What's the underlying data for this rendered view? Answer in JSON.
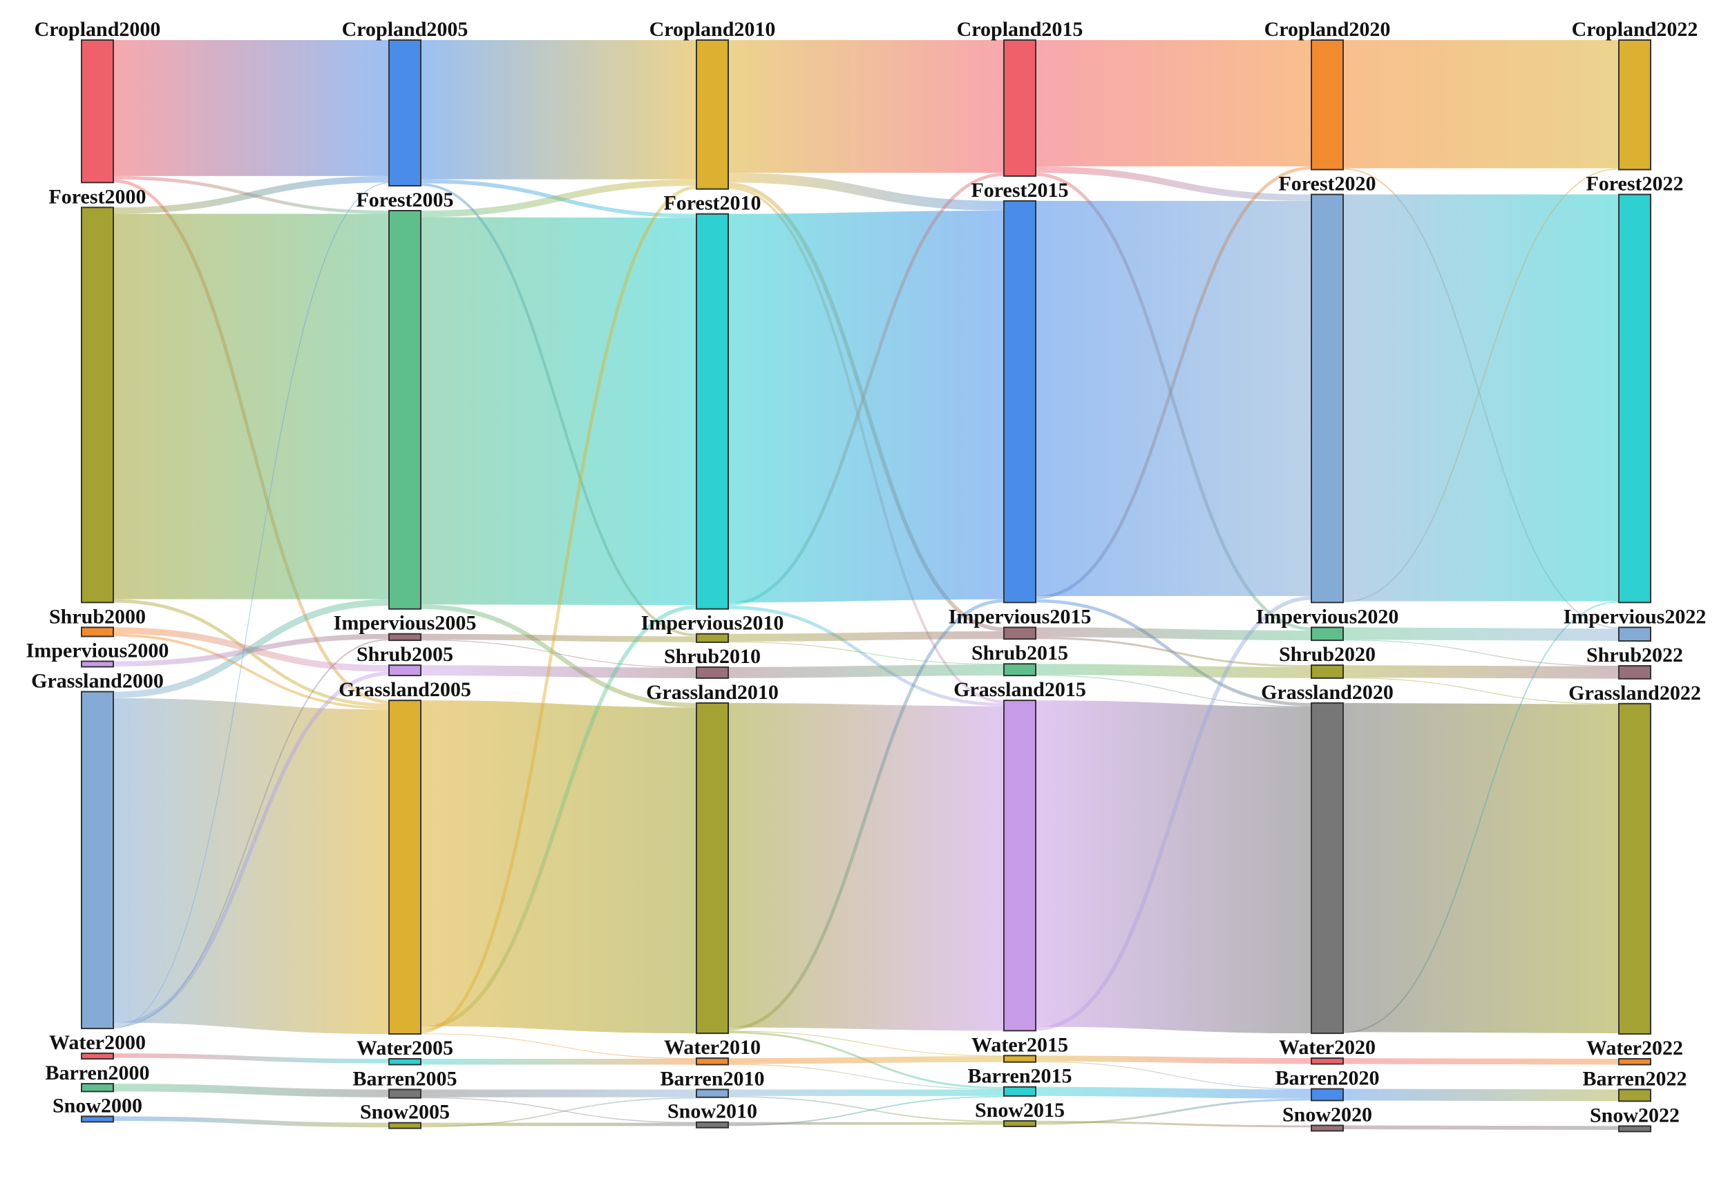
{
  "chart_data": {
    "type": "sankey",
    "title": "",
    "stages": [
      "2000",
      "2005",
      "2010",
      "2015",
      "2020",
      "2022"
    ],
    "categories": [
      "Cropland",
      "Forest",
      "Shrub",
      "Impervious",
      "Grassland",
      "Water",
      "Barren",
      "Snow"
    ],
    "nodes": [
      {
        "id": "Cropland2000",
        "label": "Cropland2000",
        "stage": 0,
        "value": 22.0,
        "color": "#f0606a"
      },
      {
        "id": "Forest2000",
        "label": "Forest2000",
        "stage": 0,
        "value": 61.0,
        "color": "#a3a233"
      },
      {
        "id": "Shrub2000",
        "label": "Shrub2000",
        "stage": 0,
        "value": 1.4,
        "color": "#f28a30"
      },
      {
        "id": "Impervious2000",
        "label": "Impervious2000",
        "stage": 0,
        "value": 0.8,
        "color": "#c89be8"
      },
      {
        "id": "Grassland2000",
        "label": "Grassland2000",
        "stage": 0,
        "value": 52.0,
        "color": "#84abd6"
      },
      {
        "id": "Water2000",
        "label": "Water2000",
        "stage": 0,
        "value": 0.7,
        "color": "#f0606a"
      },
      {
        "id": "Barren2000",
        "label": "Barren2000",
        "stage": 0,
        "value": 1.2,
        "color": "#5fbf8c"
      },
      {
        "id": "Snow2000",
        "label": "Snow2000",
        "stage": 0,
        "value": 0.7,
        "color": "#4a8de8"
      },
      {
        "id": "Cropland2005",
        "label": "Cropland2005",
        "stage": 1,
        "value": 22.5,
        "color": "#4a8de8"
      },
      {
        "id": "Forest2005",
        "label": "Forest2005",
        "stage": 1,
        "value": 61.5,
        "color": "#5fbf8c"
      },
      {
        "id": "Impervious2005",
        "label": "Impervious2005",
        "stage": 1,
        "value": 1.0,
        "color": "#9a7078"
      },
      {
        "id": "Shrub2005",
        "label": "Shrub2005",
        "stage": 1,
        "value": 1.6,
        "color": "#c89be8"
      },
      {
        "id": "Grassland2005",
        "label": "Grassland2005",
        "stage": 1,
        "value": 51.5,
        "color": "#dcb030"
      },
      {
        "id": "Water2005",
        "label": "Water2005",
        "stage": 1,
        "value": 0.9,
        "color": "#2ed0d0"
      },
      {
        "id": "Barren2005",
        "label": "Barren2005",
        "stage": 1,
        "value": 1.3,
        "color": "#777777"
      },
      {
        "id": "Snow2005",
        "label": "Snow2005",
        "stage": 1,
        "value": 0.7,
        "color": "#a3a233"
      },
      {
        "id": "Cropland2010",
        "label": "Cropland2010",
        "stage": 2,
        "value": 23.0,
        "color": "#dcb030"
      },
      {
        "id": "Forest2010",
        "label": "Forest2010",
        "stage": 2,
        "value": 61.0,
        "color": "#2ed0d0"
      },
      {
        "id": "Impervious2010",
        "label": "Impervious2010",
        "stage": 2,
        "value": 1.3,
        "color": "#a3a233"
      },
      {
        "id": "Shrub2010",
        "label": "Shrub2010",
        "stage": 2,
        "value": 1.7,
        "color": "#9a7078"
      },
      {
        "id": "Grassland2010",
        "label": "Grassland2010",
        "stage": 2,
        "value": 51.0,
        "color": "#a3a233"
      },
      {
        "id": "Water2010",
        "label": "Water2010",
        "stage": 2,
        "value": 1.0,
        "color": "#f28a30"
      },
      {
        "id": "Barren2010",
        "label": "Barren2010",
        "stage": 2,
        "value": 1.2,
        "color": "#84abd6"
      },
      {
        "id": "Snow2010",
        "label": "Snow2010",
        "stage": 2,
        "value": 0.6,
        "color": "#777777"
      },
      {
        "id": "Cropland2015",
        "label": "Cropland2015",
        "stage": 3,
        "value": 21.0,
        "color": "#f0606a"
      },
      {
        "id": "Forest2015",
        "label": "Forest2015",
        "stage": 3,
        "value": 62.0,
        "color": "#4a8de8"
      },
      {
        "id": "Impervious2015",
        "label": "Impervious2015",
        "stage": 3,
        "value": 1.8,
        "color": "#9a7078"
      },
      {
        "id": "Shrub2015",
        "label": "Shrub2015",
        "stage": 3,
        "value": 1.8,
        "color": "#5fbf8c"
      },
      {
        "id": "Grassland2015",
        "label": "Grassland2015",
        "stage": 3,
        "value": 51.0,
        "color": "#c89be8"
      },
      {
        "id": "Water2015",
        "label": "Water2015",
        "stage": 3,
        "value": 1.0,
        "color": "#dcb030"
      },
      {
        "id": "Barren2015",
        "label": "Barren2015",
        "stage": 3,
        "value": 1.4,
        "color": "#2ed0d0"
      },
      {
        "id": "Snow2015",
        "label": "Snow2015",
        "stage": 3,
        "value": 0.6,
        "color": "#a3a233"
      },
      {
        "id": "Cropland2020",
        "label": "Cropland2020",
        "stage": 4,
        "value": 20.0,
        "color": "#f28a30"
      },
      {
        "id": "Forest2020",
        "label": "Forest2020",
        "stage": 4,
        "value": 63.0,
        "color": "#84abd6"
      },
      {
        "id": "Impervious2020",
        "label": "Impervious2020",
        "stage": 4,
        "value": 2.0,
        "color": "#5fbf8c"
      },
      {
        "id": "Shrub2020",
        "label": "Shrub2020",
        "stage": 4,
        "value": 2.0,
        "color": "#a3a233"
      },
      {
        "id": "Grassland2020",
        "label": "Grassland2020",
        "stage": 4,
        "value": 51.0,
        "color": "#777777"
      },
      {
        "id": "Water2020",
        "label": "Water2020",
        "stage": 4,
        "value": 0.9,
        "color": "#f0606a"
      },
      {
        "id": "Barren2020",
        "label": "Barren2020",
        "stage": 4,
        "value": 1.8,
        "color": "#4a8de8"
      },
      {
        "id": "Snow2020",
        "label": "Snow2020",
        "stage": 4,
        "value": 0.6,
        "color": "#9a7078"
      },
      {
        "id": "Cropland2022",
        "label": "Cropland2022",
        "stage": 5,
        "value": 20.0,
        "color": "#dcb030"
      },
      {
        "id": "Forest2022",
        "label": "Forest2022",
        "stage": 5,
        "value": 63.0,
        "color": "#2ed0d0"
      },
      {
        "id": "Impervious2022",
        "label": "Impervious2022",
        "stage": 5,
        "value": 2.1,
        "color": "#84abd6"
      },
      {
        "id": "Shrub2022",
        "label": "Shrub2022",
        "stage": 5,
        "value": 2.0,
        "color": "#9a7078"
      },
      {
        "id": "Grassland2022",
        "label": "Grassland2022",
        "stage": 5,
        "value": 51.0,
        "color": "#a3a233"
      },
      {
        "id": "Water2022",
        "label": "Water2022",
        "stage": 5,
        "value": 0.9,
        "color": "#f28a30"
      },
      {
        "id": "Barren2022",
        "label": "Barren2022",
        "stage": 5,
        "value": 1.8,
        "color": "#a3a233"
      },
      {
        "id": "Snow2022",
        "label": "Snow2022",
        "stage": 5,
        "value": 0.6,
        "color": "#777777"
      }
    ],
    "links": [
      {
        "source": "Cropland2000",
        "target": "Cropland2005",
        "value": 21.0
      },
      {
        "source": "Cropland2000",
        "target": "Forest2005",
        "value": 0.5
      },
      {
        "source": "Cropland2000",
        "target": "Grassland2005",
        "value": 0.5
      },
      {
        "source": "Forest2000",
        "target": "Cropland2005",
        "value": 1.0
      },
      {
        "source": "Forest2000",
        "target": "Forest2005",
        "value": 59.5
      },
      {
        "source": "Forest2000",
        "target": "Grassland2005",
        "value": 0.5
      },
      {
        "source": "Shrub2000",
        "target": "Shrub2005",
        "value": 1.0
      },
      {
        "source": "Shrub2000",
        "target": "Grassland2005",
        "value": 0.4
      },
      {
        "source": "Impervious2000",
        "target": "Impervious2005",
        "value": 0.8
      },
      {
        "source": "Grassland2000",
        "target": "Forest2005",
        "value": 1.0
      },
      {
        "source": "Grassland2000",
        "target": "Grassland2005",
        "value": 50.1
      },
      {
        "source": "Grassland2000",
        "target": "Shrub2005",
        "value": 0.6
      },
      {
        "source": "Grassland2000",
        "target": "Impervious2005",
        "value": 0.2
      },
      {
        "source": "Grassland2000",
        "target": "Cropland2005",
        "value": 0.1
      },
      {
        "source": "Water2000",
        "target": "Water2005",
        "value": 0.7
      },
      {
        "source": "Barren2000",
        "target": "Barren2005",
        "value": 1.2
      },
      {
        "source": "Snow2000",
        "target": "Snow2005",
        "value": 0.7
      },
      {
        "source": "Cropland2005",
        "target": "Cropland2010",
        "value": 21.5
      },
      {
        "source": "Cropland2005",
        "target": "Forest2010",
        "value": 0.6
      },
      {
        "source": "Cropland2005",
        "target": "Impervious2010",
        "value": 0.4
      },
      {
        "source": "Forest2005",
        "target": "Cropland2010",
        "value": 1.0
      },
      {
        "source": "Forest2005",
        "target": "Forest2010",
        "value": 59.8
      },
      {
        "source": "Forest2005",
        "target": "Grassland2010",
        "value": 0.7
      },
      {
        "source": "Impervious2005",
        "target": "Impervious2010",
        "value": 0.9
      },
      {
        "source": "Impervious2005",
        "target": "Shrub2010",
        "value": 0.1
      },
      {
        "source": "Shrub2005",
        "target": "Shrub2010",
        "value": 1.6
      },
      {
        "source": "Grassland2005",
        "target": "Grassland2010",
        "value": 50.3
      },
      {
        "source": "Grassland2005",
        "target": "Forest2010",
        "value": 0.6
      },
      {
        "source": "Grassland2005",
        "target": "Cropland2010",
        "value": 0.5
      },
      {
        "source": "Grassland2005",
        "target": "Water2010",
        "value": 0.1
      },
      {
        "source": "Water2005",
        "target": "Water2010",
        "value": 0.9
      },
      {
        "source": "Barren2005",
        "target": "Barren2010",
        "value": 1.2
      },
      {
        "source": "Barren2005",
        "target": "Snow2010",
        "value": 0.1
      },
      {
        "source": "Snow2005",
        "target": "Snow2010",
        "value": 0.5
      },
      {
        "source": "Snow2005",
        "target": "Barren2010",
        "value": 0.2
      },
      {
        "source": "Cropland2010",
        "target": "Cropland2015",
        "value": 20.5
      },
      {
        "source": "Cropland2010",
        "target": "Forest2015",
        "value": 1.5
      },
      {
        "source": "Cropland2010",
        "target": "Impervious2015",
        "value": 0.6
      },
      {
        "source": "Cropland2010",
        "target": "Grassland2015",
        "value": 0.4
      },
      {
        "source": "Forest2010",
        "target": "Forest2015",
        "value": 60.0
      },
      {
        "source": "Forest2010",
        "target": "Cropland2015",
        "value": 0.5
      },
      {
        "source": "Forest2010",
        "target": "Grassland2015",
        "value": 0.5
      },
      {
        "source": "Impervious2010",
        "target": "Impervious2015",
        "value": 1.2
      },
      {
        "source": "Impervious2010",
        "target": "Shrub2015",
        "value": 0.1
      },
      {
        "source": "Shrub2010",
        "target": "Shrub2015",
        "value": 1.7
      },
      {
        "source": "Grassland2010",
        "target": "Grassland2015",
        "value": 50.1
      },
      {
        "source": "Grassland2010",
        "target": "Forest2015",
        "value": 0.5
      },
      {
        "source": "Grassland2010",
        "target": "Water2015",
        "value": 0.1
      },
      {
        "source": "Grassland2010",
        "target": "Barren2015",
        "value": 0.3
      },
      {
        "source": "Water2010",
        "target": "Water2015",
        "value": 0.9
      },
      {
        "source": "Water2010",
        "target": "Barren2015",
        "value": 0.1
      },
      {
        "source": "Barren2010",
        "target": "Barren2015",
        "value": 1.0
      },
      {
        "source": "Barren2010",
        "target": "Snow2015",
        "value": 0.2
      },
      {
        "source": "Snow2010",
        "target": "Snow2015",
        "value": 0.4
      },
      {
        "source": "Snow2010",
        "target": "Barren2015",
        "value": 0.2
      },
      {
        "source": "Cropland2015",
        "target": "Cropland2020",
        "value": 19.5
      },
      {
        "source": "Cropland2015",
        "target": "Forest2020",
        "value": 1.0
      },
      {
        "source": "Cropland2015",
        "target": "Impervious2020",
        "value": 0.5
      },
      {
        "source": "Forest2015",
        "target": "Forest2020",
        "value": 61.0
      },
      {
        "source": "Forest2015",
        "target": "Cropland2020",
        "value": 0.5
      },
      {
        "source": "Forest2015",
        "target": "Grassland2020",
        "value": 0.5
      },
      {
        "source": "Impervious2015",
        "target": "Impervious2020",
        "value": 1.5
      },
      {
        "source": "Impervious2015",
        "target": "Shrub2020",
        "value": 0.3
      },
      {
        "source": "Shrub2015",
        "target": "Shrub2020",
        "value": 1.7
      },
      {
        "source": "Shrub2015",
        "target": "Grassland2020",
        "value": 0.1
      },
      {
        "source": "Grassland2015",
        "target": "Grassland2020",
        "value": 50.4
      },
      {
        "source": "Grassland2015",
        "target": "Forest2020",
        "value": 0.6
      },
      {
        "source": "Water2015",
        "target": "Water2020",
        "value": 0.9
      },
      {
        "source": "Water2015",
        "target": "Barren2020",
        "value": 0.1
      },
      {
        "source": "Barren2015",
        "target": "Barren2020",
        "value": 1.4
      },
      {
        "source": "Snow2015",
        "target": "Snow2020",
        "value": 0.3
      },
      {
        "source": "Snow2015",
        "target": "Barren2020",
        "value": 0.3
      },
      {
        "source": "Cropland2020",
        "target": "Cropland2022",
        "value": 19.8
      },
      {
        "source": "Cropland2020",
        "target": "Impervious2022",
        "value": 0.2
      },
      {
        "source": "Forest2020",
        "target": "Forest2022",
        "value": 62.8
      },
      {
        "source": "Forest2020",
        "target": "Cropland2022",
        "value": 0.2
      },
      {
        "source": "Impervious2020",
        "target": "Impervious2022",
        "value": 1.9
      },
      {
        "source": "Impervious2020",
        "target": "Shrub2022",
        "value": 0.1
      },
      {
        "source": "Shrub2020",
        "target": "Shrub2022",
        "value": 1.9
      },
      {
        "source": "Shrub2020",
        "target": "Grassland2022",
        "value": 0.1
      },
      {
        "source": "Grassland2020",
        "target": "Grassland2022",
        "value": 50.8
      },
      {
        "source": "Grassland2020",
        "target": "Forest2022",
        "value": 0.2
      },
      {
        "source": "Water2020",
        "target": "Water2022",
        "value": 0.9
      },
      {
        "source": "Barren2020",
        "target": "Barren2022",
        "value": 1.8
      },
      {
        "source": "Snow2020",
        "target": "Snow2022",
        "value": 0.6
      }
    ]
  }
}
